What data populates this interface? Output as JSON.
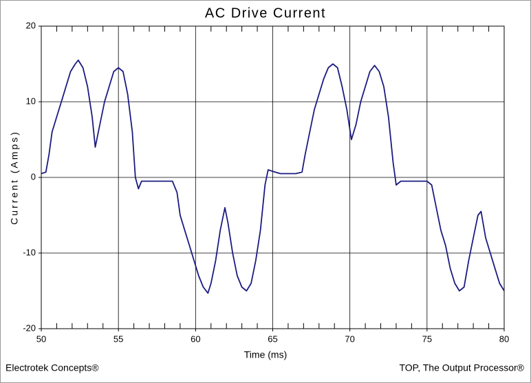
{
  "chart_data": {
    "type": "line",
    "title": "AC Drive Current",
    "x_label": "Time (ms)",
    "y_label": "Current (Amps)",
    "footer_left": "Electrotek Concepts®",
    "footer_right": "TOP, The Output Processor®",
    "x": [
      50.0,
      50.3,
      50.5,
      50.7,
      51.0,
      51.3,
      51.6,
      51.9,
      52.2,
      52.4,
      52.7,
      53.0,
      53.3,
      53.5,
      53.8,
      54.1,
      54.4,
      54.7,
      55.0,
      55.3,
      55.6,
      55.9,
      56.1,
      56.3,
      56.5,
      57.0,
      57.5,
      58.0,
      58.5,
      58.8,
      59.0,
      59.3,
      59.6,
      59.9,
      60.2,
      60.5,
      60.8,
      61.0,
      61.3,
      61.6,
      61.9,
      62.1,
      62.4,
      62.7,
      63.0,
      63.3,
      63.6,
      63.9,
      64.2,
      64.5,
      64.7,
      65.0,
      65.5,
      66.0,
      66.5,
      66.9,
      67.1,
      67.4,
      67.7,
      68.0,
      68.3,
      68.6,
      68.9,
      69.2,
      69.5,
      69.8,
      70.1,
      70.4,
      70.7,
      71.0,
      71.3,
      71.6,
      71.9,
      72.2,
      72.5,
      72.8,
      73.0,
      73.3,
      74.0,
      74.5,
      75.0,
      75.3,
      75.6,
      75.9,
      76.2,
      76.5,
      76.8,
      77.1,
      77.4,
      77.7,
      78.0,
      78.3,
      78.5,
      78.8,
      79.1,
      79.4,
      79.7,
      80.0
    ],
    "series": [
      {
        "name": "Current",
        "color": "#1a1a80",
        "values": [
          0.5,
          0.7,
          3,
          6,
          8,
          10,
          12,
          14,
          15,
          15.5,
          14.5,
          12,
          8,
          4,
          7,
          10,
          12,
          14,
          14.5,
          14,
          11,
          6,
          0,
          -1.5,
          -0.5,
          -0.5,
          -0.5,
          -0.5,
          -0.5,
          -2,
          -5,
          -7,
          -9,
          -11,
          -13,
          -14.5,
          -15.3,
          -14,
          -11,
          -7,
          -4,
          -6,
          -10,
          -13,
          -14.5,
          -15,
          -14,
          -11,
          -7,
          -1,
          1,
          0.8,
          0.5,
          0.5,
          0.5,
          0.7,
          3,
          6,
          9,
          11,
          13,
          14.5,
          15,
          14.5,
          12,
          9,
          5,
          7,
          10,
          12,
          14,
          14.8,
          14,
          12,
          8,
          2,
          -1,
          -0.5,
          -0.5,
          -0.5,
          -0.5,
          -1,
          -4,
          -7,
          -9,
          -12,
          -14,
          -15,
          -14.5,
          -11,
          -8,
          -5,
          -4.5,
          -8,
          -10,
          -12,
          -14,
          -15
        ]
      }
    ],
    "xlim": [
      50,
      80
    ],
    "xticks": [
      50,
      55,
      60,
      65,
      70,
      75,
      80
    ],
    "ylim": [
      -20,
      20
    ],
    "yticks": [
      -20,
      -10,
      0,
      10,
      20
    ],
    "grid": true
  }
}
